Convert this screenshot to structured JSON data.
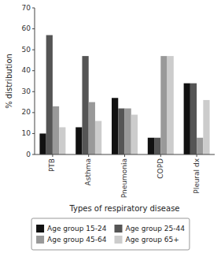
{
  "chart_data": {
    "type": "bar",
    "categories": [
      "PTB",
      "Asthma",
      "Pneumonia",
      "COPD",
      "Pleural dx"
    ],
    "series": [
      {
        "name": "Age group 15-24",
        "color": "#111111",
        "values": [
          10,
          13,
          27,
          8,
          34
        ]
      },
      {
        "name": "Age group 25-44",
        "color": "#555555",
        "values": [
          57,
          47,
          22,
          8,
          34
        ]
      },
      {
        "name": "Age group 45-64",
        "color": "#999999",
        "values": [
          23,
          25,
          22,
          47,
          8
        ]
      },
      {
        "name": "Age group 65+",
        "color": "#cccccc",
        "values": [
          13,
          16,
          19,
          47,
          26
        ]
      }
    ],
    "xlabel": "Types of respiratory disease",
    "ylabel": "% distribution",
    "ylim": [
      0,
      70
    ],
    "yticks": [
      0,
      10,
      20,
      30,
      40,
      50,
      60,
      70
    ],
    "grid": false,
    "legend": "bottom"
  }
}
